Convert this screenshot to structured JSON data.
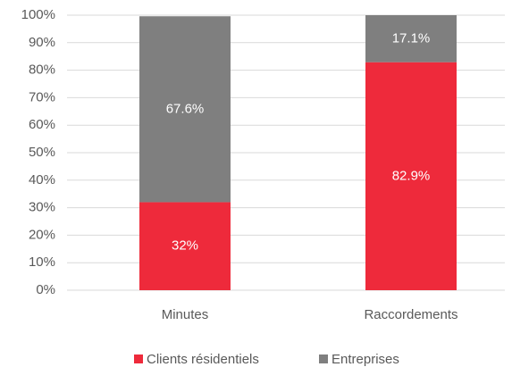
{
  "chart_data": {
    "type": "stacked_bar",
    "categories": [
      "Minutes",
      "Raccordements"
    ],
    "series": [
      {
        "name": "Clients résidentiels",
        "color": "#ee2a3b",
        "values": [
          32,
          82.9
        ],
        "value_labels": [
          "32%",
          "82.9%"
        ]
      },
      {
        "name": "Entreprises",
        "color": "#7f7f7f",
        "values": [
          67.6,
          17.1
        ],
        "value_labels": [
          "67.6%",
          "17.1%"
        ]
      }
    ],
    "ylim": [
      0,
      100
    ],
    "yticks": [
      {
        "value": 0,
        "label": "0%"
      },
      {
        "value": 10,
        "label": "10%"
      },
      {
        "value": 20,
        "label": "20%"
      },
      {
        "value": 30,
        "label": "30%"
      },
      {
        "value": 40,
        "label": "40%"
      },
      {
        "value": 50,
        "label": "50%"
      },
      {
        "value": 60,
        "label": "60%"
      },
      {
        "value": 70,
        "label": "70%"
      },
      {
        "value": 80,
        "label": "80%"
      },
      {
        "value": 90,
        "label": "90%"
      },
      {
        "value": 100,
        "label": "100%"
      }
    ],
    "grid": true,
    "legend": "bottom"
  }
}
